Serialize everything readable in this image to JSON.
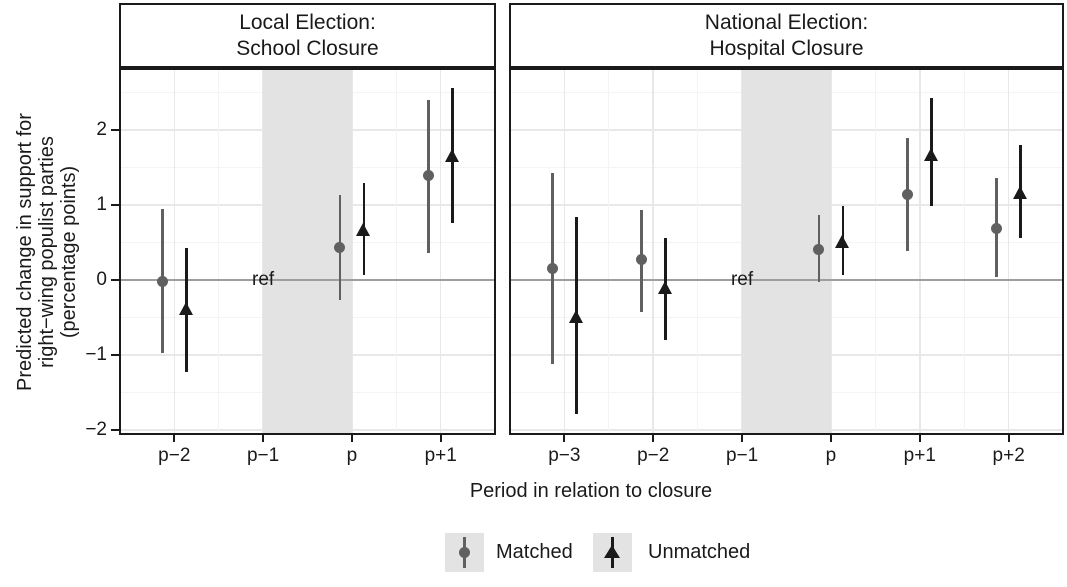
{
  "chart_data": {
    "type": "scatter",
    "title": "",
    "xlabel": "Period in relation to closure",
    "ylabel": "Predicted change in support for right−wing populist parties (percentage points)",
    "ylabel_lines": [
      "Predicted change in support for",
      "right−wing populist parties",
      "(percentage points)"
    ],
    "ylim": [
      -2.04,
      2.8
    ],
    "yticks": [
      {
        "v": 2,
        "label": "2"
      },
      {
        "v": 1,
        "label": "1"
      },
      {
        "v": 0,
        "label": "0"
      },
      {
        "v": -1,
        "label": "−1"
      },
      {
        "v": -2,
        "label": "−2"
      }
    ],
    "minor_yticks": [
      -1.5,
      -0.5,
      0.5,
      1.5,
      2.5
    ],
    "grid": true,
    "zero_line": 0,
    "ref_label": "ref",
    "legend_position": "bottom",
    "legend": [
      {
        "label": "Matched",
        "marker": "circle"
      },
      {
        "label": "Unmatched",
        "marker": "triangle"
      }
    ],
    "colors": {
      "matched": "#606060",
      "unmatched": "#1a1a1a",
      "band": "#e3e3e3",
      "zero_line": "#9e9e9e",
      "grid_major": "#e8e8e8",
      "grid_minor": "#f4f4f4",
      "legend_key_bg": "#e3e3e3",
      "panel_border": "#1a1a1a"
    },
    "panels": [
      {
        "title_lines": [
          "Local Election:",
          "School Closure"
        ],
        "categories": [
          "p−2",
          "p−1",
          "p",
          "p+1"
        ],
        "ref_category": "p−1",
        "shaded_band": {
          "from": "p−1",
          "to": "p"
        },
        "series": [
          {
            "name": "Matched",
            "marker": "circle",
            "color": "#606060",
            "points": [
              {
                "x": "p−2",
                "est": -0.02,
                "lo": -0.97,
                "hi": 0.95
              },
              {
                "x": "p",
                "est": 0.44,
                "lo": -0.26,
                "hi": 1.13
              },
              {
                "x": "p+1",
                "est": 1.39,
                "lo": 0.36,
                "hi": 2.4
              }
            ]
          },
          {
            "name": "Unmatched",
            "marker": "triangle",
            "color": "#1a1a1a",
            "points": [
              {
                "x": "p−2",
                "est": -0.38,
                "lo": -1.22,
                "hi": 0.43
              },
              {
                "x": "p",
                "est": 0.68,
                "lo": 0.07,
                "hi": 1.3
              },
              {
                "x": "p+1",
                "est": 1.66,
                "lo": 0.76,
                "hi": 2.56
              }
            ]
          }
        ]
      },
      {
        "title_lines": [
          "National Election:",
          "Hospital Closure"
        ],
        "categories": [
          "p−3",
          "p−2",
          "p−1",
          "p",
          "p+1",
          "p+2"
        ],
        "ref_category": "p−1",
        "shaded_band": {
          "from": "p−1",
          "to": "p"
        },
        "series": [
          {
            "name": "Matched",
            "marker": "circle",
            "color": "#606060",
            "points": [
              {
                "x": "p−3",
                "est": 0.15,
                "lo": -1.12,
                "hi": 1.43
              },
              {
                "x": "p−2",
                "est": 0.27,
                "lo": -0.42,
                "hi": 0.93
              },
              {
                "x": "p",
                "est": 0.41,
                "lo": -0.02,
                "hi": 0.87
              },
              {
                "x": "p+1",
                "est": 1.14,
                "lo": 0.39,
                "hi": 1.9
              },
              {
                "x": "p+2",
                "est": 0.69,
                "lo": 0.04,
                "hi": 1.36
              }
            ]
          },
          {
            "name": "Unmatched",
            "marker": "triangle",
            "color": "#1a1a1a",
            "points": [
              {
                "x": "p−3",
                "est": -0.49,
                "lo": -1.79,
                "hi": 0.84
              },
              {
                "x": "p−2",
                "est": -0.1,
                "lo": -0.8,
                "hi": 0.56
              },
              {
                "x": "p",
                "est": 0.52,
                "lo": 0.07,
                "hi": 0.99
              },
              {
                "x": "p+1",
                "est": 1.68,
                "lo": 0.99,
                "hi": 2.43
              },
              {
                "x": "p+2",
                "est": 1.17,
                "lo": 0.56,
                "hi": 1.8
              }
            ]
          }
        ]
      }
    ]
  }
}
